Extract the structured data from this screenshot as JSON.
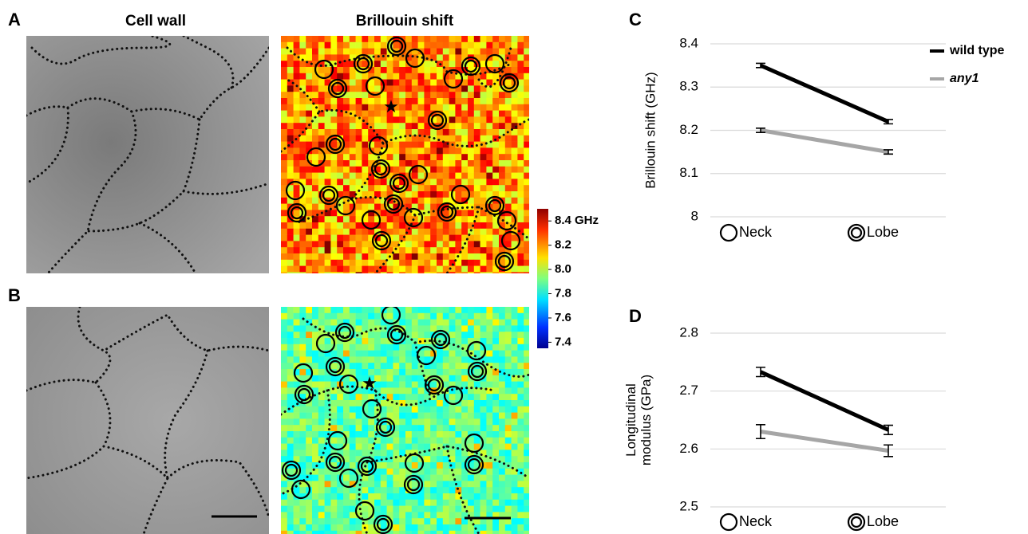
{
  "panel_labels": [
    "A",
    "B",
    "C",
    "D"
  ],
  "column_titles": [
    "Cell wall",
    "Brillouin shift"
  ],
  "colorbar": {
    "lim": [
      7.35,
      8.5
    ],
    "ticks": [
      {
        "value": 8.4,
        "label": "8.4 GHz"
      },
      8.2,
      {
        "value": 8,
        "label": "8.0"
      },
      7.8,
      7.6,
      7.4
    ]
  },
  "chart_data": [
    {
      "type": "line",
      "ylabel": "Brillouin shift (GHz)",
      "categories": [
        "Neck",
        "Lobe"
      ],
      "ylim": [
        8,
        8.4
      ],
      "yticks": [
        8,
        8.1,
        8.2,
        8.3,
        8.4
      ],
      "grid": true,
      "legend": "top-right",
      "series": [
        {
          "name": "wild type",
          "color": "#000000",
          "values": [
            8.35,
            8.22
          ],
          "errors": [
            0.005,
            0.005
          ]
        },
        {
          "name": "any1",
          "color": "#a6a6a6",
          "values": [
            8.2,
            8.15
          ],
          "errors": [
            0.005,
            0.005
          ]
        }
      ]
    },
    {
      "type": "line",
      "ylabel": "Longitudinal modulus (GPa)",
      "categories": [
        "Neck",
        "Lobe"
      ],
      "ylim": [
        2.5,
        2.8
      ],
      "yticks": [
        2.5,
        2.6,
        2.7,
        2.8
      ],
      "grid": true,
      "series": [
        {
          "color": "#000000",
          "values": [
            2.733,
            2.633
          ],
          "errors": [
            0.008,
            0.008
          ]
        },
        {
          "color": "#a6a6a6",
          "values": [
            2.63,
            2.597
          ],
          "errors": [
            0.012,
            0.01
          ]
        }
      ]
    }
  ]
}
